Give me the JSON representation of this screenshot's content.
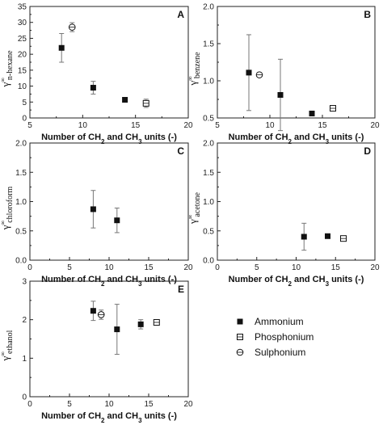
{
  "chart_data": [
    {
      "type": "scatter",
      "panel": "A",
      "ylabel": "γ∞n-hexane",
      "ylabel_sub": "n-hexane",
      "xlabel": "Number of CH2 and CH3 units (-)",
      "xlim": [
        5,
        20
      ],
      "ylim": [
        0,
        35
      ],
      "xticks": [
        5,
        10,
        15,
        20
      ],
      "yticks": [
        0,
        5,
        10,
        15,
        20,
        25,
        30,
        35
      ],
      "series": [
        {
          "name": "Ammonium",
          "points": [
            {
              "x": 8,
              "y": 22,
              "err": 4.5
            },
            {
              "x": 11,
              "y": 9.5,
              "err": 2.0
            },
            {
              "x": 14,
              "y": 5.7,
              "err": 0.5
            }
          ]
        },
        {
          "name": "Phosphonium",
          "points": [
            {
              "x": 16,
              "y": 4.6,
              "err": 1.3
            }
          ]
        },
        {
          "name": "Sulphonium",
          "points": [
            {
              "x": 9,
              "y": 28.5,
              "err": 1.4
            }
          ]
        }
      ]
    },
    {
      "type": "scatter",
      "panel": "B",
      "ylabel": "γ∞benzene",
      "ylabel_sub": "benzene",
      "xlabel": "Number of CH2 and CH3 units (-)",
      "xlim": [
        5,
        20
      ],
      "ylim": [
        0.5,
        2.0
      ],
      "xticks": [
        5,
        10,
        15,
        20
      ],
      "yticks": [
        0.5,
        1.0,
        1.5,
        2.0
      ],
      "series": [
        {
          "name": "Ammonium",
          "points": [
            {
              "x": 8,
              "y": 1.11,
              "err": 0.51
            },
            {
              "x": 11,
              "y": 0.81,
              "err": 0.48
            },
            {
              "x": 14,
              "y": 0.56,
              "err": 0.01
            }
          ]
        },
        {
          "name": "Phosphonium",
          "points": [
            {
              "x": 16,
              "y": 0.63,
              "err": 0.01
            }
          ]
        },
        {
          "name": "Sulphonium",
          "points": [
            {
              "x": 9,
              "y": 1.08,
              "err": 0.03
            }
          ]
        }
      ]
    },
    {
      "type": "scatter",
      "panel": "C",
      "ylabel": "γ∞chloroform",
      "ylabel_sub": "chloroform",
      "xlabel": "Number of CH2 and CH3 units (-)",
      "xlim": [
        0,
        20
      ],
      "ylim": [
        0,
        2.0
      ],
      "xticks": [
        0,
        5,
        10,
        15,
        20
      ],
      "yticks": [
        0.0,
        0.5,
        1.0,
        1.5,
        2.0
      ],
      "series": [
        {
          "name": "Ammonium",
          "points": [
            {
              "x": 8,
              "y": 0.87,
              "err": 0.32
            },
            {
              "x": 11,
              "y": 0.68,
              "err": 0.21
            }
          ]
        }
      ]
    },
    {
      "type": "scatter",
      "panel": "D",
      "ylabel": "γ∞acetone",
      "ylabel_sub": "acetone",
      "xlabel": "Number of CH2 and CH3 units (-)",
      "xlim": [
        0,
        20
      ],
      "ylim": [
        0,
        2.0
      ],
      "xticks": [
        0,
        5,
        10,
        15,
        20
      ],
      "yticks": [
        0.0,
        0.5,
        1.0,
        1.5,
        2.0
      ],
      "series": [
        {
          "name": "Ammonium",
          "points": [
            {
              "x": 11,
              "y": 0.4,
              "err": 0.23
            },
            {
              "x": 14,
              "y": 0.41,
              "err": 0.01
            }
          ]
        },
        {
          "name": "Phosphonium",
          "points": [
            {
              "x": 16,
              "y": 0.37,
              "err": 0.02
            }
          ]
        }
      ]
    },
    {
      "type": "scatter",
      "panel": "E",
      "ylabel": "γ∞ethanol",
      "ylabel_sub": "ethanol",
      "xlabel": "Number of CH2 and CH3 units (-)",
      "xlim": [
        0,
        20
      ],
      "ylim": [
        0,
        3
      ],
      "xticks": [
        0,
        5,
        10,
        15,
        20
      ],
      "yticks": [
        0,
        1,
        2,
        3
      ],
      "series": [
        {
          "name": "Ammonium",
          "points": [
            {
              "x": 8,
              "y": 2.23,
              "err": 0.25
            },
            {
              "x": 11,
              "y": 1.75,
              "err": 0.65
            },
            {
              "x": 14,
              "y": 1.88,
              "err": 0.12
            }
          ]
        },
        {
          "name": "Phosphonium",
          "points": [
            {
              "x": 16,
              "y": 1.93,
              "err": 0.02
            }
          ]
        },
        {
          "name": "Sulphonium",
          "points": [
            {
              "x": 9,
              "y": 2.13,
              "err": 0.12
            }
          ]
        }
      ]
    }
  ],
  "legend": {
    "position": "bottom-right",
    "items": [
      {
        "label": "Ammonium",
        "marker": "filled-square"
      },
      {
        "label": "Phosphonium",
        "marker": "open-square-dot"
      },
      {
        "label": "Sulphonium",
        "marker": "open-circle-dot"
      }
    ]
  },
  "style": {
    "marker_color": "#111111",
    "errorbar_color": "#777777",
    "axis_color": "#222222"
  }
}
